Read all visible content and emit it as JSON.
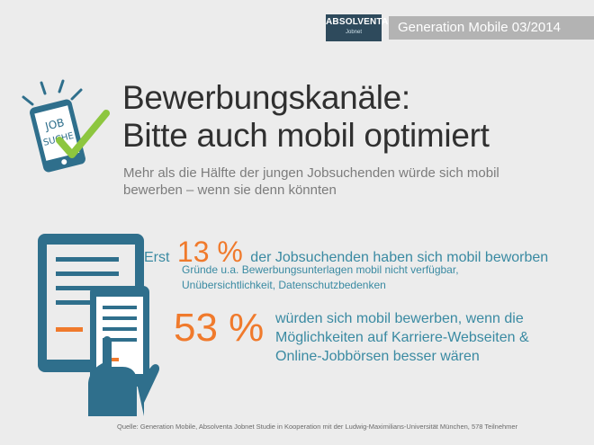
{
  "header": {
    "logo_text": "ABSOLVENTA",
    "logo_sub": "Jobnet",
    "edition": "Generation Mobile 03/2014"
  },
  "icon_phone": {
    "label_line1": "JOB",
    "label_line2": "SUCHE"
  },
  "title": {
    "line1": "Bewerbungskanäle:",
    "line2": "Bitte auch mobil optimiert"
  },
  "subtitle": "Mehr als die Hälfte der jungen Jobsuchenden würde sich mobil bewerben – wenn sie denn könnten",
  "stat1": {
    "prefix": "Erst",
    "value": "13 %",
    "text": "der Jobsuchenden haben sich mobil beworben",
    "reasons": "Gründe u.a. Bewerbungsunterlagen mobil nicht verfügbar, Unübersichtlichkeit, Datenschutzbedenken"
  },
  "stat2": {
    "value": "53 %",
    "text": "würden sich mobil bewerben, wenn die Möglichkeiten auf Karriere-Webseiten & Online-Jobbörsen besser wären"
  },
  "source": "Quelle: Generation Mobile, Absolventa Jobnet Studie in Kooperation mit der Ludwig-Maximilians-Universität München, 578 Teilnehmer",
  "colors": {
    "accent_orange": "#f07a2c",
    "accent_teal": "#3a8aa2",
    "icon_blue": "#2f6f8c",
    "check_green": "#8dc63f",
    "background": "#ececec"
  }
}
